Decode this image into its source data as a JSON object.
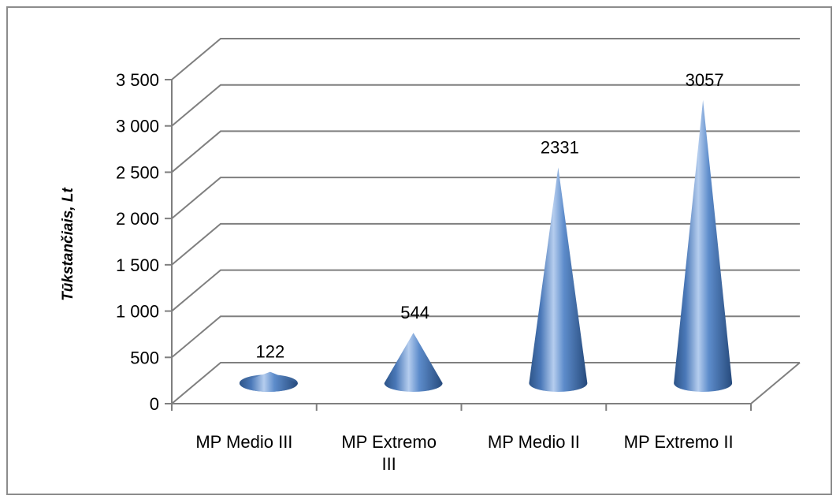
{
  "chart_data": {
    "type": "bar",
    "shape": "cone-3d",
    "categories": [
      "MP Medio III",
      "MP Extremo III",
      "MP Medio II",
      "MP Extremo II"
    ],
    "category_lines": [
      [
        "MP Medio III"
      ],
      [
        "MP Extremo",
        "III"
      ],
      [
        "MP Medio II"
      ],
      [
        "MP Extremo II"
      ]
    ],
    "values": [
      122,
      544,
      2331,
      3057
    ],
    "data_labels": [
      "122",
      "544",
      "2331",
      "3057"
    ],
    "ylabel": "Tūkstančiais, Lt",
    "ylim": [
      0,
      3500
    ],
    "yticks": [
      0,
      500,
      1000,
      1500,
      2000,
      2500,
      3000,
      3500
    ],
    "ytick_labels": [
      "0",
      "500",
      "1 000",
      "1 500",
      "2 000",
      "2 500",
      "3 000",
      "3 500"
    ],
    "grid": true,
    "legend": "none",
    "colors": {
      "series": "#4f81bd",
      "series_dark": "#2c5182",
      "series_light": "#b7cdea",
      "grid": "#7f7f7f"
    }
  }
}
